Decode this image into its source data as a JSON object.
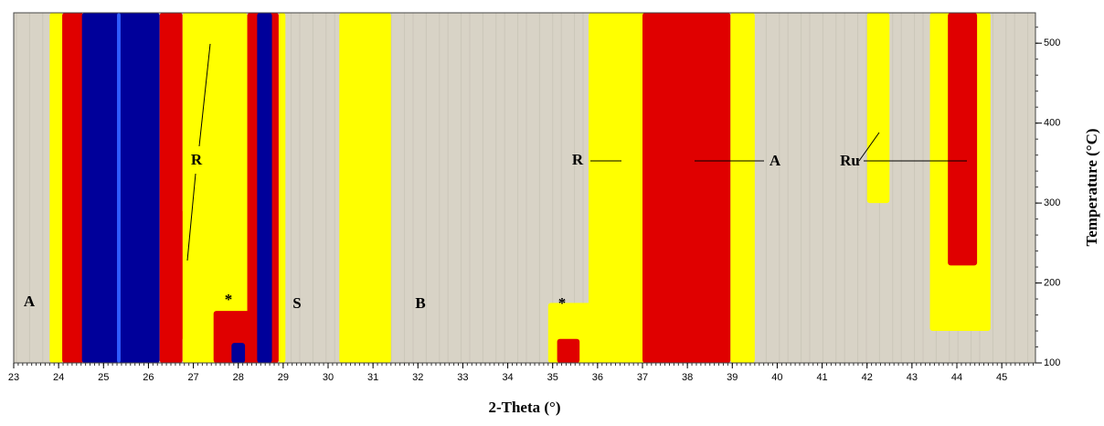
{
  "chart_data": {
    "type": "contour",
    "xlabel": "2-Theta (°)",
    "ylabel": "Temperature (°C)",
    "xlim": [
      23,
      45.75
    ],
    "ylim": [
      100,
      538
    ],
    "xticks": [
      23,
      24,
      25,
      26,
      27,
      28,
      29,
      30,
      31,
      32,
      33,
      34,
      35,
      36,
      37,
      38,
      39,
      40,
      41,
      42,
      43,
      44,
      45
    ],
    "yticks": [
      100,
      200,
      300,
      400,
      500
    ],
    "background": "#d8d3c6",
    "regions": [
      {
        "x": [
          23.8,
          24.1
        ],
        "y": [
          100,
          538
        ],
        "color": "#ffff00"
      },
      {
        "x": [
          24.08,
          24.55
        ],
        "y": [
          100,
          538
        ],
        "color": "#e00000"
      },
      {
        "x": [
          24.52,
          26.25
        ],
        "y": [
          100,
          538
        ],
        "color": "#00009a"
      },
      {
        "x": [
          25.3,
          25.38
        ],
        "y": [
          100,
          538
        ],
        "color": "#2f5cff"
      },
      {
        "x": [
          26.25,
          26.76
        ],
        "y": [
          100,
          538
        ],
        "color": "#e00000"
      },
      {
        "x": [
          26.7,
          27.05
        ],
        "y": [
          130,
          290
        ],
        "color": "#e00000"
      },
      {
        "x": [
          26.76,
          28.2
        ],
        "y": [
          100,
          538
        ],
        "color": "#ffff00"
      },
      {
        "x": [
          27.45,
          28.4
        ],
        "y": [
          100,
          165
        ],
        "color": "#e00000"
      },
      {
        "x": [
          27.85,
          28.15
        ],
        "y": [
          100,
          125
        ],
        "color": "#00009a"
      },
      {
        "x": [
          28.2,
          28.9
        ],
        "y": [
          100,
          538
        ],
        "color": "#e00000"
      },
      {
        "x": [
          28.42,
          28.75
        ],
        "y": [
          100,
          538
        ],
        "color": "#00009a"
      },
      {
        "x": [
          28.9,
          29.05
        ],
        "y": [
          100,
          538
        ],
        "color": "#ffff00"
      },
      {
        "x": [
          30.25,
          31.4
        ],
        "y": [
          100,
          538
        ],
        "color": "#ffff00"
      },
      {
        "x": [
          35.8,
          37.2
        ],
        "y": [
          100,
          538
        ],
        "color": "#ffff00"
      },
      {
        "x": [
          34.9,
          37.2
        ],
        "y": [
          100,
          175
        ],
        "color": "#ffff00"
      },
      {
        "x": [
          35.1,
          35.6
        ],
        "y": [
          100,
          130
        ],
        "color": "#e00000"
      },
      {
        "x": [
          37.0,
          38.96
        ],
        "y": [
          100,
          538
        ],
        "color": "#e00000"
      },
      {
        "x": [
          38.96,
          39.5
        ],
        "y": [
          100,
          538
        ],
        "color": "#ffff00"
      },
      {
        "x": [
          42.0,
          42.5
        ],
        "y": [
          300,
          538
        ],
        "color": "#ffff00"
      },
      {
        "x": [
          43.4,
          44.75
        ],
        "y": [
          140,
          538
        ],
        "color": "#ffff00"
      },
      {
        "x": [
          43.8,
          44.45
        ],
        "y": [
          222,
          538
        ],
        "color": "#e00000"
      }
    ],
    "annotations": [
      "A",
      "R",
      "*",
      "S",
      "B",
      "*",
      "R",
      "A",
      "Ru"
    ]
  }
}
